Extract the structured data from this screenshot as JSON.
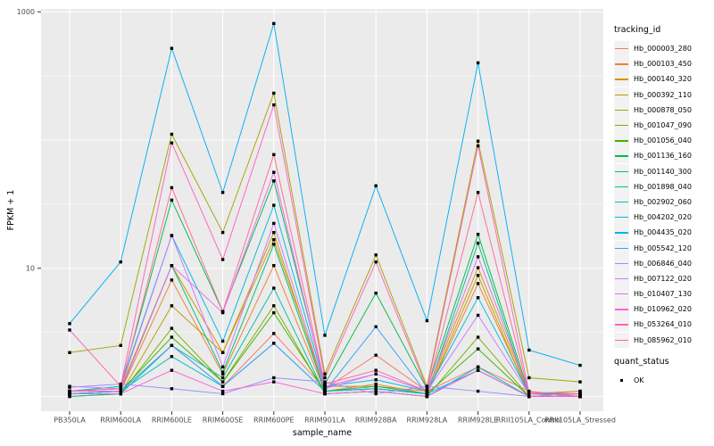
{
  "figure": {
    "background": "#FFFFFF",
    "panel_bg": "#EBEBEB",
    "grid_major_color": "#FFFFFF",
    "grid_minor_color": "#FFFFFF",
    "tick_label_color": "#4D4D4D",
    "tick_mark_color": "#333333",
    "axis_title_color": "#000000",
    "point_color": "#000000"
  },
  "axes": {
    "x_title": "sample_name",
    "y_title": "FPKM + 1",
    "y_ticks": [
      {
        "label": "1000",
        "value": 1000
      },
      {
        "label": "10",
        "value": 10
      }
    ]
  },
  "legend": {
    "tracking_title": "tracking_id",
    "quant_title": "quant_status",
    "quant_items": [
      {
        "label": "OK"
      }
    ]
  },
  "chart_data": {
    "type": "line",
    "x_axis": "sample_name",
    "y_axis": "FPKM + 1",
    "y_scale": "log10",
    "ylim": [
      1,
      1000
    ],
    "grid": true,
    "legend_position": "right",
    "samples": [
      "PB350LA",
      "RRIM600LA",
      "RRIM600LE",
      "RRIM600SE",
      "RRIM600PE",
      "RRIM901LA",
      "RRIM928BA",
      "RRIM928LA",
      "RRIM928LE",
      "RRII105LA_Control",
      "RRII105LA_Stressed"
    ],
    "series": [
      {
        "name": "Hb_000003_280",
        "color": "#F8766D",
        "values": [
          1.1,
          1.1,
          2.5,
          1.2,
          3.1,
          1.15,
          2.1,
          1.1,
          1.7,
          1.1,
          1.0
        ]
      },
      {
        "name": "Hb_000103_450",
        "color": "#EA8331",
        "values": [
          1.05,
          1.1,
          8.1,
          1.5,
          10.5,
          1.1,
          1.25,
          1.05,
          7.6,
          1.05,
          1.1
        ]
      },
      {
        "name": "Hb_000140_320",
        "color": "#D89000",
        "values": [
          1.1,
          1.15,
          10.5,
          2.2,
          16.7,
          1.2,
          1.2,
          1.1,
          10.1,
          1.05,
          1.1
        ]
      },
      {
        "name": "Hb_000392_110",
        "color": "#C09B00",
        "values": [
          1.05,
          1.05,
          5.1,
          2.2,
          19,
          1.1,
          1.15,
          1.05,
          8.8,
          1.0,
          1.05
        ]
      },
      {
        "name": "Hb_000878_050",
        "color": "#A3A500",
        "values": [
          2.2,
          2.5,
          111,
          19,
          232,
          1.5,
          12.7,
          1.2,
          98,
          1.4,
          1.3
        ]
      },
      {
        "name": "Hb_001047_090",
        "color": "#7CAE00",
        "values": [
          1.0,
          1.05,
          3.4,
          1.3,
          5.1,
          1.05,
          1.1,
          1.0,
          2.9,
          1.0,
          1.0
        ]
      },
      {
        "name": "Hb_001056_040",
        "color": "#39B600",
        "values": [
          1.05,
          1.1,
          2.9,
          1.3,
          4.5,
          1.1,
          1.15,
          1.05,
          2.35,
          1.0,
          1.0
        ]
      },
      {
        "name": "Hb_001136_160",
        "color": "#00BB4E",
        "values": [
          1.1,
          1.2,
          34,
          4.6,
          48,
          1.25,
          6.4,
          1.15,
          18.4,
          1.05,
          1.05
        ]
      },
      {
        "name": "Hb_001140_300",
        "color": "#00BF7D",
        "values": [
          1.05,
          1.1,
          10.5,
          1.55,
          15.4,
          1.1,
          1.2,
          1.05,
          15.7,
          1.0,
          1.05
        ]
      },
      {
        "name": "Hb_001898_040",
        "color": "#00C1A3",
        "values": [
          1.0,
          1.05,
          2.5,
          1.4,
          7.0,
          1.05,
          1.1,
          1.0,
          1.7,
          1.0,
          1.0
        ]
      },
      {
        "name": "Hb_002902_060",
        "color": "#00BFC4",
        "values": [
          1.05,
          1.1,
          2.05,
          1.2,
          2.6,
          1.1,
          1.15,
          1.05,
          1.6,
          1.0,
          1.0
        ]
      },
      {
        "name": "Hb_004202_020",
        "color": "#00BAE0",
        "values": [
          1.1,
          1.2,
          18,
          2.7,
          31,
          1.2,
          1.35,
          1.1,
          5.9,
          1.05,
          1.05
        ]
      },
      {
        "name": "Hb_004435_020",
        "color": "#00B0F6",
        "values": [
          3.7,
          11.2,
          519,
          39,
          811,
          3.0,
          44,
          3.9,
          400,
          2.3,
          1.75
        ]
      },
      {
        "name": "Hb_005542_120",
        "color": "#35A2FF",
        "values": [
          1.05,
          1.1,
          2.5,
          1.2,
          2.6,
          1.1,
          3.5,
          1.05,
          1.6,
          1.0,
          1.0
        ]
      },
      {
        "name": "Hb_006846_040",
        "color": "#9590FF",
        "values": [
          1.18,
          1.25,
          1.15,
          1.05,
          1.4,
          1.3,
          1.05,
          1.2,
          1.1,
          1.0,
          1.05
        ]
      },
      {
        "name": "Hb_007122_020",
        "color": "#C77CFF",
        "values": [
          1.2,
          1.15,
          18,
          1.7,
          22.4,
          1.15,
          1.5,
          1.1,
          4.3,
          1.05,
          1.0
        ]
      },
      {
        "name": "Hb_010407_130",
        "color": "#E76BF3",
        "values": [
          1.1,
          1.1,
          10.5,
          4.5,
          56,
          1.2,
          1.5,
          1.1,
          12.3,
          1.05,
          1.0
        ]
      },
      {
        "name": "Hb_010962_020",
        "color": "#FA62DB",
        "values": [
          1.05,
          1.05,
          1.6,
          1.1,
          1.3,
          1.05,
          1.1,
          1.0,
          1.6,
          1.0,
          1.0
        ]
      },
      {
        "name": "Hb_053264_010",
        "color": "#FF62BC",
        "values": [
          3.3,
          1.2,
          95,
          11.7,
          188,
          1.4,
          11.2,
          1.15,
          90,
          1.08,
          1.05
        ]
      },
      {
        "name": "Hb_085962_010",
        "color": "#FF6A98",
        "values": [
          1.1,
          1.15,
          42.5,
          4.6,
          77,
          1.25,
          1.6,
          1.1,
          39,
          1.05,
          1.0
        ]
      }
    ],
    "quant_status": {
      "label": "OK",
      "marker": "black point on every data vertex"
    }
  }
}
